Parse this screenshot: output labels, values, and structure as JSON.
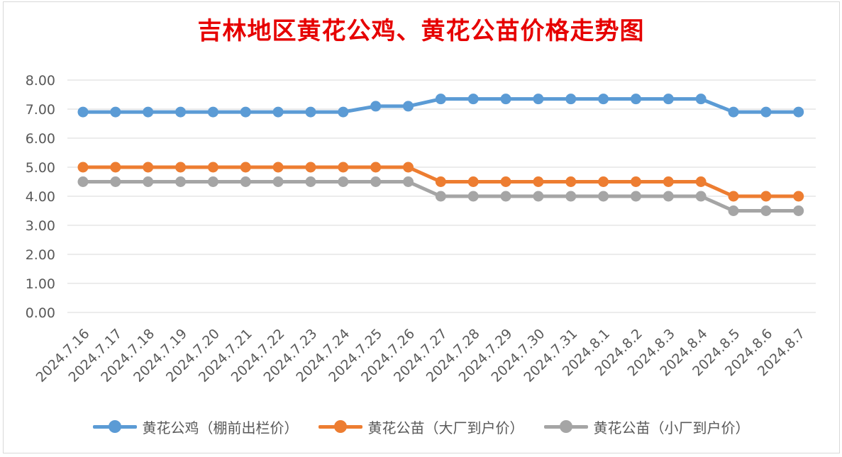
{
  "chart_data": {
    "type": "line",
    "title": "吉林地区黄花公鸡、黄花公苗价格走势图",
    "categories": [
      "2024.7.16",
      "2024.7.17",
      "2024.7.18",
      "2024.7.19",
      "2024.7.20",
      "2024.7.21",
      "2024.7.22",
      "2024.7.23",
      "2024.7.24",
      "2024.7.25",
      "2024.7.26",
      "2024.7.27",
      "2024.7.28",
      "2024.7.29",
      "2024.7.30",
      "2024.7.31",
      "2024.8.1",
      "2024.8.2",
      "2024.8.3",
      "2024.8.4",
      "2024.8.5",
      "2024.8.6",
      "2024.8.7"
    ],
    "series": [
      {
        "name": "黄花公鸡（棚前出栏价）",
        "color": "#5b9bd5",
        "values": [
          6.9,
          6.9,
          6.9,
          6.9,
          6.9,
          6.9,
          6.9,
          6.9,
          6.9,
          7.1,
          7.1,
          7.35,
          7.35,
          7.35,
          7.35,
          7.35,
          7.35,
          7.35,
          7.35,
          7.35,
          6.9,
          6.9,
          6.9
        ]
      },
      {
        "name": "黄花公苗（大厂到户价）",
        "color": "#ed7d31",
        "values": [
          5.0,
          5.0,
          5.0,
          5.0,
          5.0,
          5.0,
          5.0,
          5.0,
          5.0,
          5.0,
          5.0,
          4.5,
          4.5,
          4.5,
          4.5,
          4.5,
          4.5,
          4.5,
          4.5,
          4.5,
          4.0,
          4.0,
          4.0
        ]
      },
      {
        "name": "黄花公苗（小厂到户价）",
        "color": "#a5a5a5",
        "values": [
          4.5,
          4.5,
          4.5,
          4.5,
          4.5,
          4.5,
          4.5,
          4.5,
          4.5,
          4.5,
          4.5,
          4.0,
          4.0,
          4.0,
          4.0,
          4.0,
          4.0,
          4.0,
          4.0,
          4.0,
          3.5,
          3.5,
          3.5
        ]
      }
    ],
    "yticks": [
      "0.00",
      "1.00",
      "2.00",
      "3.00",
      "4.00",
      "5.00",
      "6.00",
      "7.00",
      "8.00"
    ],
    "ylim": [
      0,
      8
    ],
    "grid": true,
    "legend_position": "bottom",
    "title_color": "#e60000"
  }
}
